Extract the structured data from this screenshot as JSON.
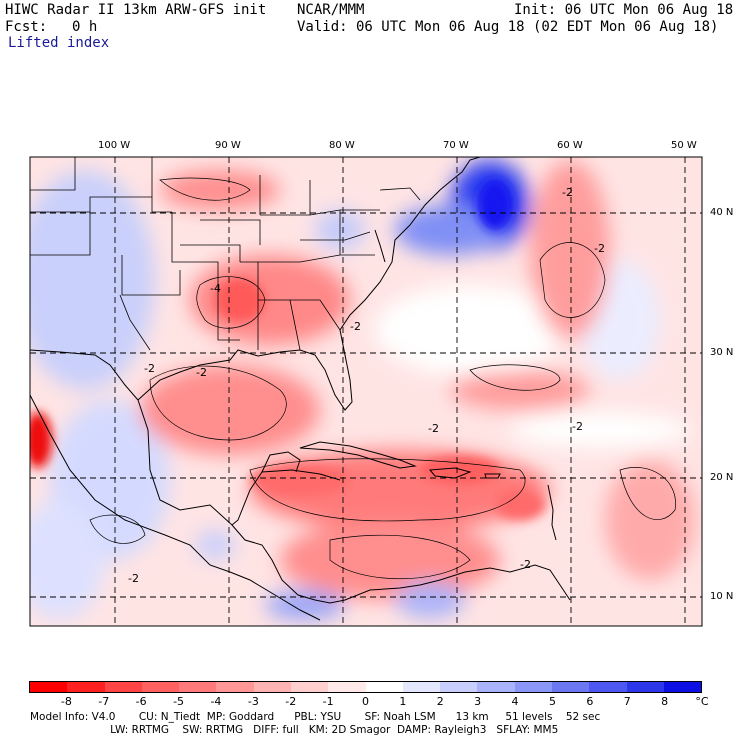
{
  "header": {
    "title_line": "HIWC Radar II 13km ARW-GFS init",
    "org": "NCAR/MMM",
    "init": "Init: 06 UTC Mon 06 Aug 18",
    "fcst_label": "Fcst:",
    "fcst_value": "0 h",
    "valid": "Valid: 06 UTC Mon 06 Aug 18 (02 EDT Mon 06 Aug 18)",
    "field": "Lifted index"
  },
  "map": {
    "lon_labels": [
      "100 W",
      "90 W",
      "80 W",
      "70 W",
      "60 W",
      "50 W"
    ],
    "lat_labels": [
      "40 N",
      "30 N",
      "20 N",
      "10 N"
    ],
    "contour_label": "-2",
    "extra_contour_labels": [
      "-4",
      "-2",
      "-2",
      "-2",
      "-2",
      "-2",
      "-2",
      "-2",
      "-2"
    ],
    "colors": {
      "neg_strong": "#ff0000",
      "neg_mid": "#ff6666",
      "neg_light": "#ffc2c2",
      "neutral": "#ffffff",
      "pos_light": "#cfd6ff",
      "pos_mid": "#8f9cf7",
      "pos_strong": "#1a1aff"
    }
  },
  "colorbar": {
    "labels": [
      "-8",
      "-7",
      "-6",
      "-5",
      "-4",
      "-3",
      "-2",
      "-1",
      "0",
      "1",
      "2",
      "3",
      "4",
      "5",
      "6",
      "7",
      "8"
    ],
    "unit": "°C",
    "colors": [
      "#ff0000",
      "#ff2020",
      "#ff4545",
      "#ff6060",
      "#ff7b7b",
      "#ff9797",
      "#ffb3b3",
      "#ffcfcf",
      "#ffe9e9",
      "#ffffff",
      "#e4e8ff",
      "#c8cffc",
      "#aab3f9",
      "#8a97f6",
      "#6b78f2",
      "#4c58ef",
      "#2d37ea",
      "#0d10e2"
    ]
  },
  "model_info": {
    "line1": "Model Info: V4.0       CU: N_Tiedt  MP: Goddard      PBL: YSU       SF: Noah LSM      13 km     51 levels    52 sec",
    "line2": "                        LW: RRTMG    SW: RRTMG   DIFF: full   KM: 2D Smagor  DAMP: Rayleigh3   SFLAY: MM5"
  }
}
